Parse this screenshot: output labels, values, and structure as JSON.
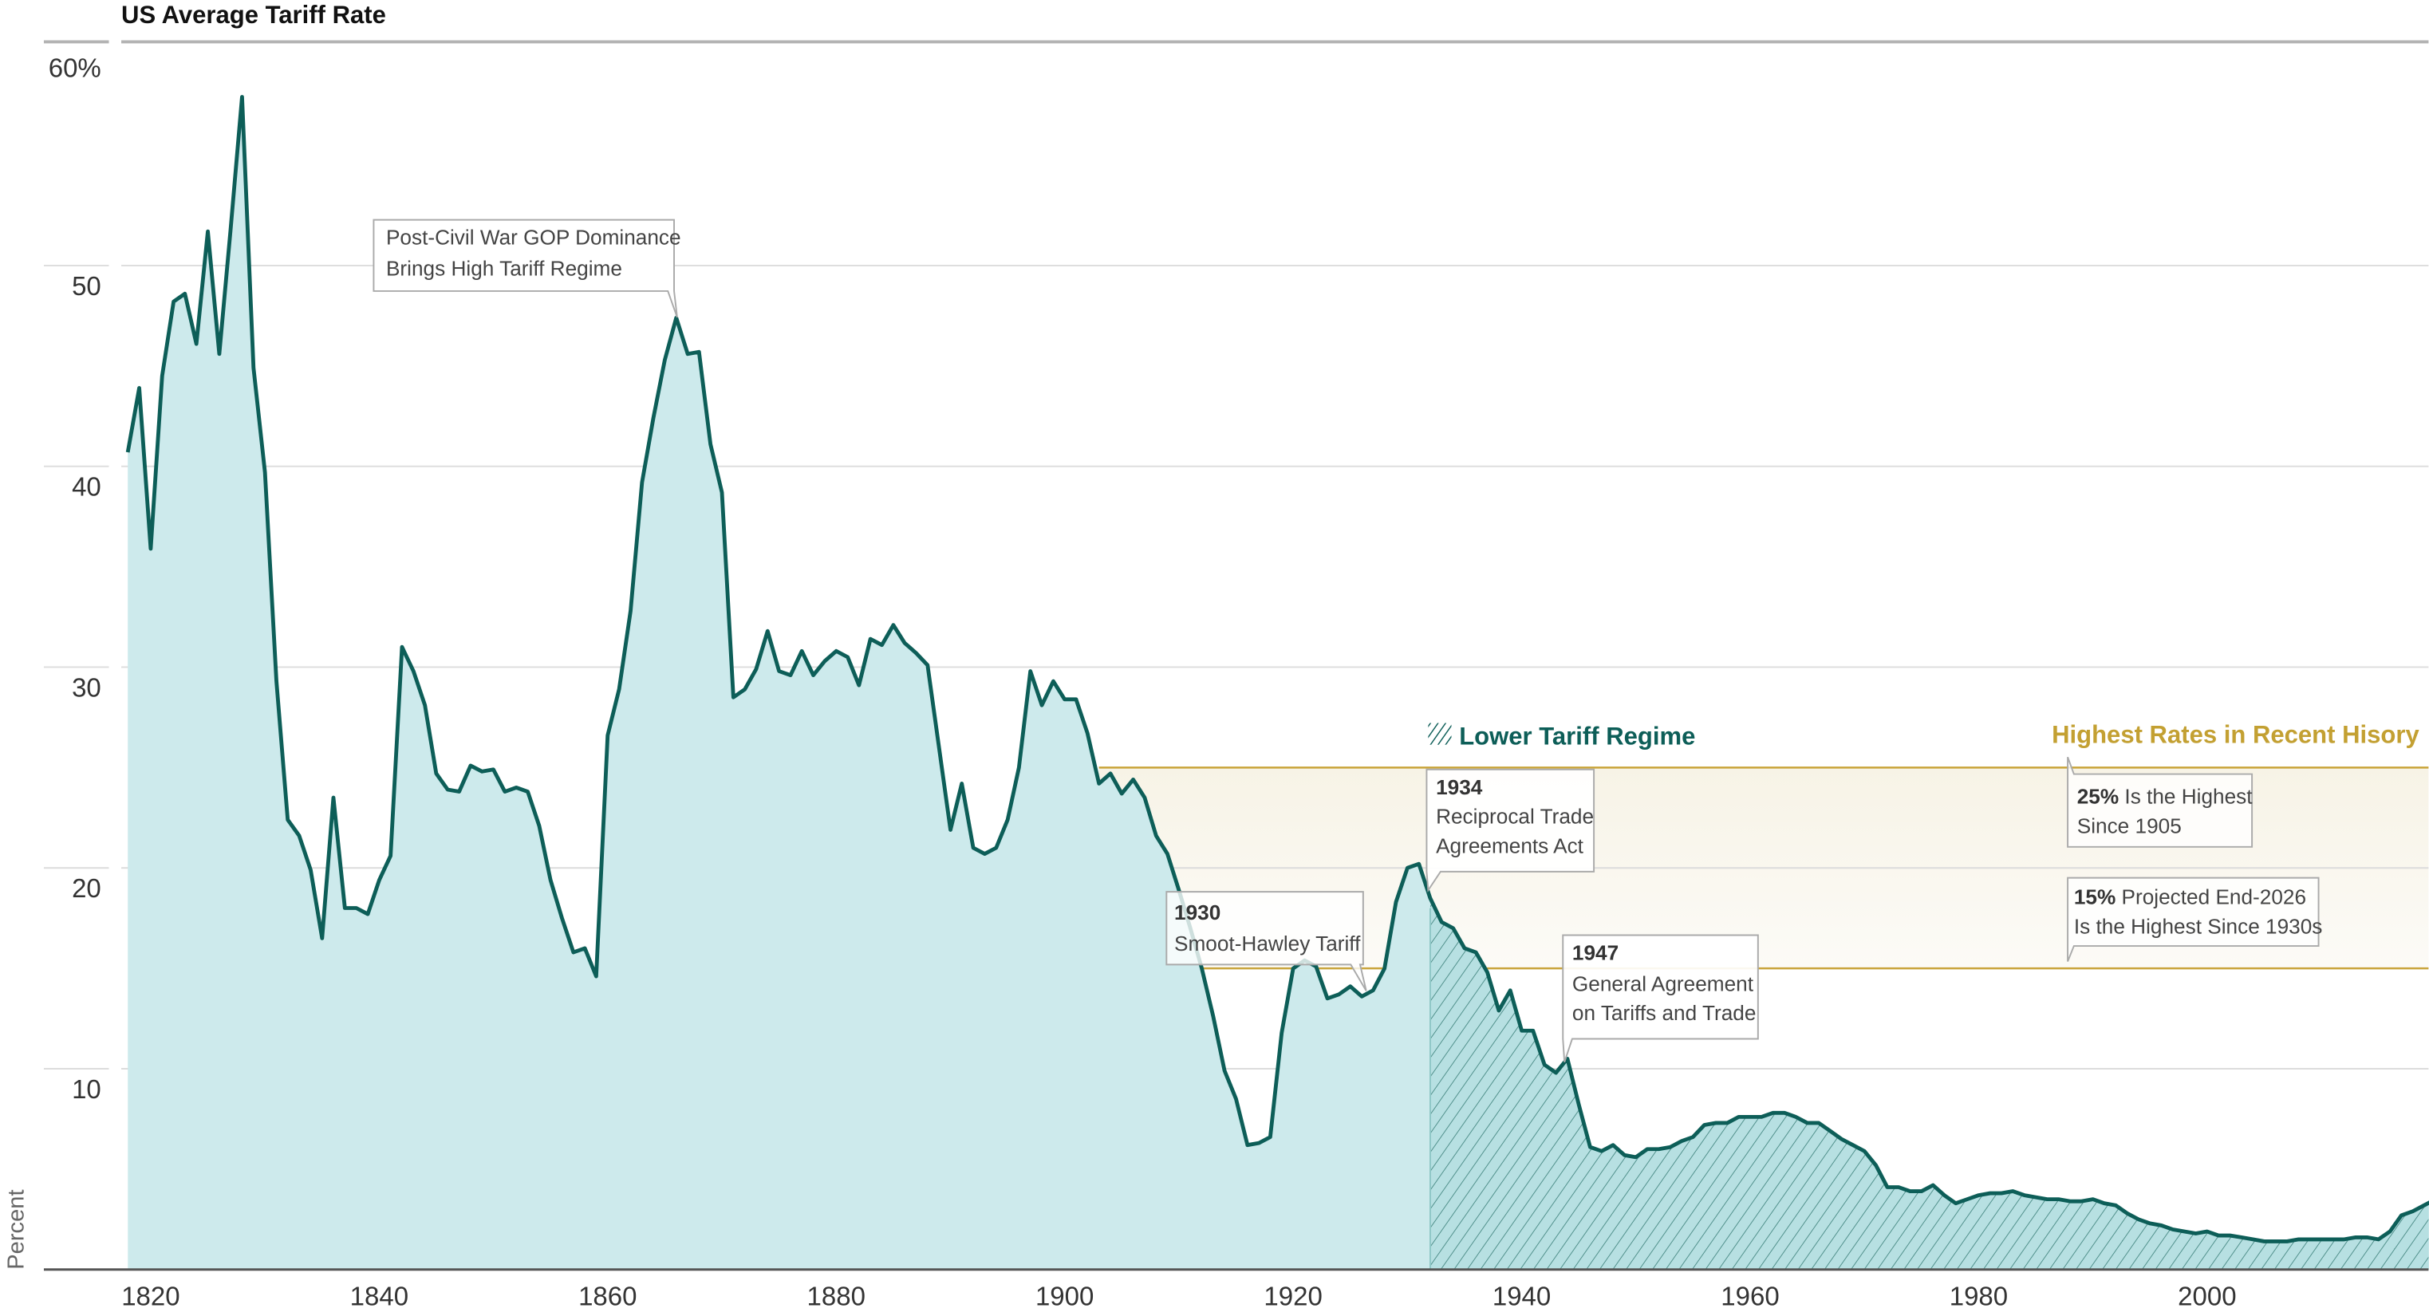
{
  "chart_data": {
    "type": "area",
    "title": "US Average Tariff Rate",
    "ylabel": "Percent",
    "xlabel": "",
    "ylim": [
      0,
      60
    ],
    "xlim": [
      1818,
      2020
    ],
    "y_ticks": [
      "60%",
      "50",
      "40",
      "30",
      "20",
      "10"
    ],
    "y_tick_values": [
      60,
      50,
      40,
      30,
      20,
      10
    ],
    "x_ticks": [
      "1820",
      "1840",
      "1860",
      "1880",
      "1900",
      "1920",
      "1940",
      "1960",
      "1980",
      "2000"
    ],
    "x_tick_values": [
      1820,
      1840,
      1860,
      1880,
      1900,
      1920,
      1940,
      1960,
      1980,
      2000
    ],
    "grid": true,
    "year_start": 1818,
    "year_step": 1,
    "values": [
      40.7,
      43.9,
      35.9,
      44.5,
      48.2,
      48.6,
      46.1,
      51.7,
      45.6,
      51.8,
      58.4,
      44.9,
      39.7,
      29.3,
      22.4,
      21.6,
      19.9,
      16.5,
      23.5,
      18.0,
      18.0,
      17.7,
      19.4,
      20.6,
      31.0,
      29.8,
      28.1,
      24.7,
      23.9,
      23.8,
      25.1,
      24.8,
      24.9,
      23.8,
      24.0,
      23.8,
      22.1,
      19.4,
      17.5,
      15.8,
      16.0,
      14.6,
      26.6,
      28.9,
      32.8,
      39.2,
      42.4,
      45.3,
      47.4,
      45.6,
      45.7,
      41.1,
      38.7,
      28.5,
      28.9,
      29.9,
      31.8,
      29.8,
      29.6,
      30.8,
      29.6,
      30.3,
      30.8,
      30.5,
      29.1,
      31.4,
      31.1,
      32.1,
      31.2,
      30.7,
      30.1,
      26.0,
      21.9,
      24.2,
      21.0,
      20.7,
      21.0,
      22.4,
      25.0,
      29.8,
      28.1,
      29.3,
      28.4,
      28.4,
      26.7,
      24.2,
      24.7,
      23.7,
      24.4,
      23.5,
      21.6,
      20.7,
      18.9,
      17.0,
      15.0,
      12.6,
      9.9,
      8.5,
      6.2,
      6.3,
      6.6,
      11.8,
      15.0,
      15.4,
      15.1,
      13.5,
      13.7,
      14.1,
      13.6,
      13.9,
      15.0,
      18.3,
      20.0,
      20.2,
      18.5,
      17.3,
      17.0,
      16.0,
      15.8,
      14.8,
      12.9,
      13.9,
      11.9,
      11.9,
      10.2,
      9.8,
      10.5,
      8.2,
      6.1,
      5.9,
      6.2,
      5.7,
      5.6,
      6.0,
      6.0,
      6.1,
      6.4,
      6.6,
      7.2,
      7.3,
      7.3,
      7.6,
      7.6,
      7.6,
      7.8,
      7.8,
      7.6,
      7.3,
      7.3,
      6.9,
      6.5,
      6.2,
      5.9,
      5.2,
      4.1,
      4.1,
      3.9,
      3.9,
      4.2,
      3.7,
      3.3,
      3.5,
      3.7,
      3.8,
      3.8,
      3.9,
      3.7,
      3.6,
      3.5,
      3.5,
      3.4,
      3.4,
      3.5,
      3.3,
      3.2,
      2.8,
      2.5,
      2.3,
      2.2,
      2.0,
      1.9,
      1.8,
      1.9,
      1.7,
      1.7,
      1.6,
      1.5,
      1.4,
      1.4,
      1.4,
      1.5,
      1.5,
      1.5,
      1.5,
      1.5,
      1.6,
      1.6,
      1.5,
      1.9,
      2.7,
      2.9,
      3.2,
      3.5
    ],
    "hatch_region": {
      "label": "Lower Tariff Regime",
      "start_year": 1932
    },
    "highlight_band": {
      "label": "Highest Rates in Recent Hisory",
      "range": [
        15,
        25
      ],
      "start_year": 1903
    },
    "annotations": {
      "civil_war": {
        "line1": "Post-Civil War GOP Dominance",
        "line2": "Brings High Tariff Regime"
      },
      "a1930": {
        "year": "1930",
        "text": "Smoot-Hawley Tariff"
      },
      "a1934": {
        "year": "1934",
        "line1": "Reciprocal Trade",
        "line2": "Agreements Act"
      },
      "a1947": {
        "year": "1947",
        "line1": "General Agreement",
        "line2": "on Tariffs and Trade"
      },
      "p25": {
        "bold": "25%",
        "line1": " Is the Highest",
        "line2": "Since 1905"
      },
      "p15": {
        "bold": "15%",
        "line1": " Projected End-2026",
        "line2": "Is the Highest Since 1930s"
      }
    },
    "colors": {
      "line": "#0d5e58",
      "area": "#cdeaec",
      "hatch_area": "#b7e0e2",
      "band": "#f8f6ef",
      "band_line": "#c9a43a",
      "highlight_label": "#c3a032"
    }
  }
}
